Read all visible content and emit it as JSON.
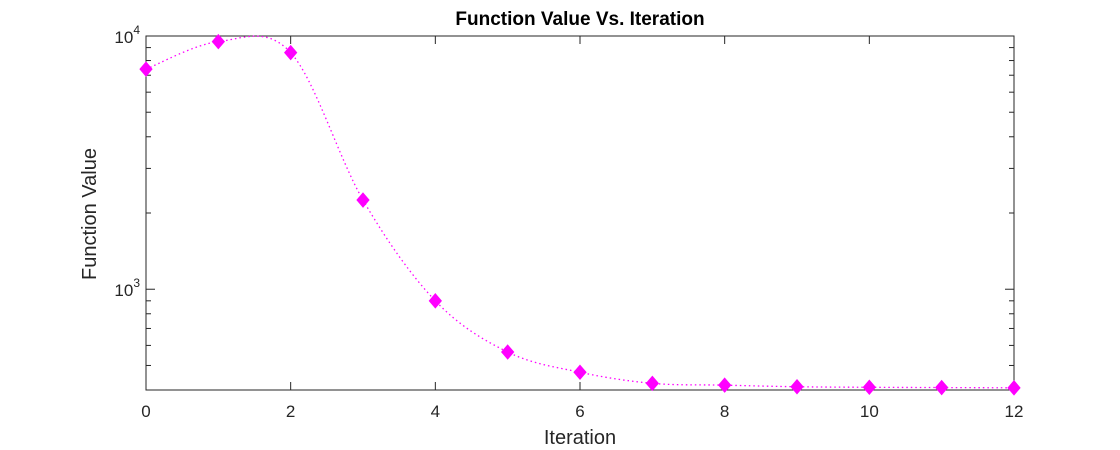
{
  "chart_data": {
    "type": "line",
    "title": "Function Value Vs. Iteration",
    "xlabel": "Iteration",
    "ylabel": "Function Value",
    "xlim": [
      0,
      12
    ],
    "ylim": [
      400,
      10000
    ],
    "y_scale": "log",
    "grid": false,
    "box": true,
    "x_ticks": [
      0,
      2,
      4,
      6,
      8,
      10,
      12
    ],
    "y_major_ticks": [
      {
        "value": 1000,
        "base": "10",
        "exp": "3"
      },
      {
        "value": 10000,
        "base": "10",
        "exp": "4"
      }
    ],
    "y_minor_ticks": [
      400,
      500,
      600,
      700,
      800,
      900,
      2000,
      3000,
      4000,
      5000,
      6000,
      7000,
      8000,
      9000
    ],
    "series": [
      {
        "marker": "diamond",
        "line_style": "dotted",
        "color": "#ff00ff",
        "x": [
          0,
          1,
          2,
          3,
          4,
          5,
          6,
          7,
          8,
          9,
          10,
          11,
          12
        ],
        "y": [
          7400,
          9500,
          8600,
          2250,
          900,
          565,
          470,
          425,
          418,
          412,
          410,
          409,
          408
        ]
      }
    ]
  }
}
